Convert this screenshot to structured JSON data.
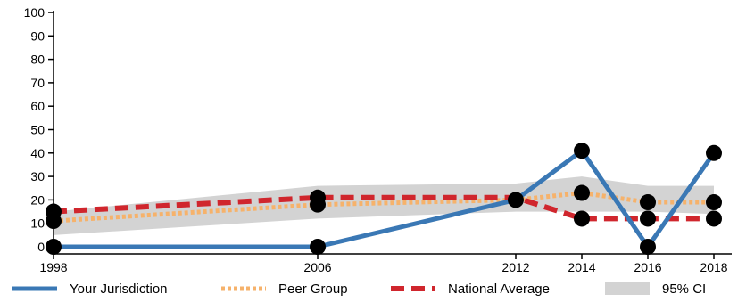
{
  "chart_data": {
    "type": "line",
    "title": "",
    "xlabel": "",
    "ylabel": "",
    "x": [
      1998,
      2006,
      2012,
      2014,
      2016,
      2018
    ],
    "x_tick_labels": [
      "1998",
      "2006",
      "2012",
      "2014",
      "2016",
      "2018"
    ],
    "y_ticks": [
      0,
      10,
      20,
      30,
      40,
      50,
      60,
      70,
      80,
      90,
      100
    ],
    "ylim": [
      0,
      100
    ],
    "grid": false,
    "legend_position": "bottom",
    "series": [
      {
        "name": "Your Jurisdiction",
        "values": [
          0,
          0,
          20,
          41,
          0,
          40
        ],
        "color": "#3a78b5",
        "style": "solid",
        "markers": [
          true,
          true,
          true,
          true,
          true,
          true
        ]
      },
      {
        "name": "Peer Group",
        "values": [
          11,
          18,
          20,
          23,
          19,
          19
        ],
        "color": "#f6b26b",
        "style": "dotted",
        "markers": [
          true,
          true,
          false,
          true,
          true,
          true
        ]
      },
      {
        "name": "National Average",
        "values": [
          15,
          21,
          21,
          12,
          12,
          12
        ],
        "color": "#d0262d",
        "style": "dashed",
        "markers": [
          true,
          true,
          false,
          true,
          true,
          true
        ]
      }
    ],
    "confidence_band": {
      "name": "95% CI",
      "lower": [
        5,
        12,
        15,
        15,
        15,
        14
      ],
      "upper": [
        15,
        26,
        27,
        30,
        26,
        26
      ],
      "color": "#d3d3d3"
    }
  }
}
